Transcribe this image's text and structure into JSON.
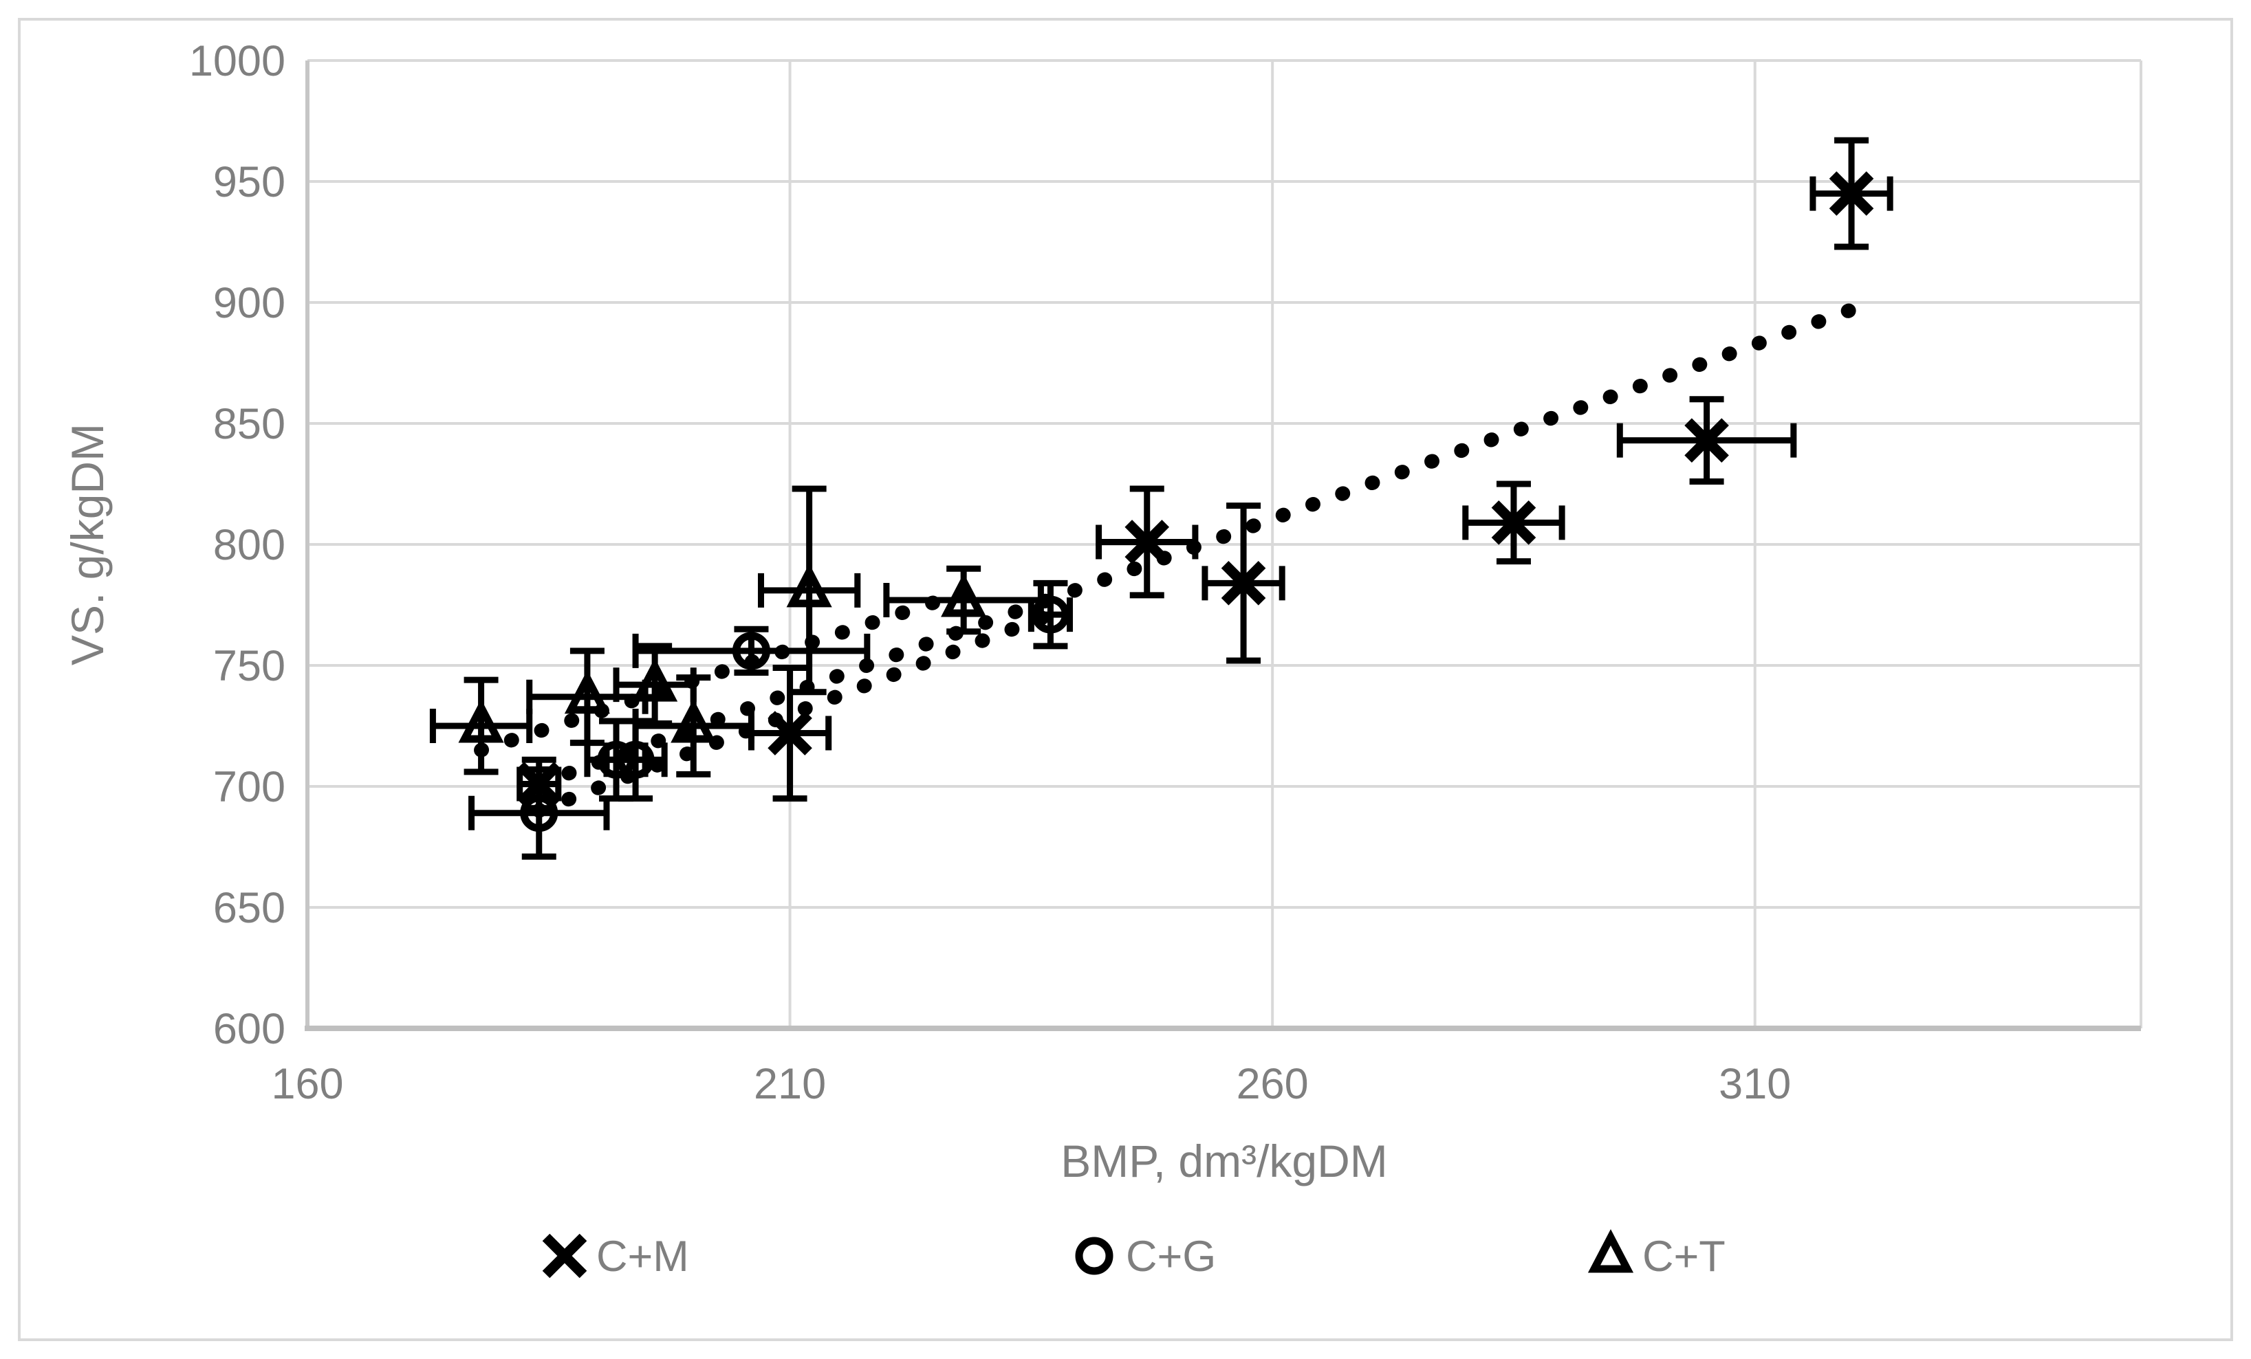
{
  "figure": {
    "background": "#ffffff",
    "border_color": "#d9d9d9",
    "text_color": "#7f7f7f",
    "gridline_color": "#d9d9d9",
    "axis_line_color": "#bfbfbf",
    "marker_color": "#000000"
  },
  "chart_data": {
    "type": "scatter",
    "title": "",
    "xlabel": "BMP, dm³/kgDM",
    "ylabel": "VS. g/kgDM",
    "xlim": [
      160,
      350
    ],
    "ylim": [
      600,
      1000
    ],
    "xticks": [
      160,
      210,
      260,
      310
    ],
    "yticks": [
      600,
      650,
      700,
      750,
      800,
      850,
      900,
      950,
      1000
    ],
    "grid": true,
    "legend_position": "bottom",
    "series": [
      {
        "name": "C+M",
        "marker": "x",
        "color": "#000000",
        "points": [
          {
            "x": 184,
            "y": 701,
            "xerr": 2,
            "yerr": 10
          },
          {
            "x": 210,
            "y": 722,
            "xerr": 4,
            "yerr": 27
          },
          {
            "x": 247,
            "y": 801,
            "xerr": 5,
            "yerr": 22
          },
          {
            "x": 257,
            "y": 784,
            "xerr": 4,
            "yerr": 32
          },
          {
            "x": 285,
            "y": 809,
            "xerr": 5,
            "yerr": 16
          },
          {
            "x": 305,
            "y": 843,
            "xerr": 9,
            "yerr": 17
          },
          {
            "x": 320,
            "y": 945,
            "xerr": 4,
            "yerr": 22
          }
        ],
        "trendline": {
          "style": "dotted",
          "from": [
            184,
            701
          ],
          "to": [
            320,
            897
          ]
        }
      },
      {
        "name": "C+G",
        "marker": "circle",
        "color": "#000000",
        "points": [
          {
            "x": 184,
            "y": 689,
            "xerr": 7,
            "yerr": 18
          },
          {
            "x": 192,
            "y": 711,
            "xerr": 3,
            "yerr": 16
          },
          {
            "x": 194,
            "y": 711,
            "xerr": 3,
            "yerr": 16
          },
          {
            "x": 206,
            "y": 756,
            "xerr": 12,
            "yerr": 9
          },
          {
            "x": 237,
            "y": 771,
            "xerr": 2,
            "yerr": 13
          }
        ],
        "trendline": {
          "style": "dotted",
          "from": [
            184,
            690
          ],
          "to": [
            237,
            771
          ]
        }
      },
      {
        "name": "C+T",
        "marker": "triangle",
        "color": "#000000",
        "points": [
          {
            "x": 178,
            "y": 725,
            "xerr": 5,
            "yerr": 19
          },
          {
            "x": 189,
            "y": 737,
            "xerr": 6,
            "yerr": 19
          },
          {
            "x": 196,
            "y": 742,
            "xerr": 4,
            "yerr": 16
          },
          {
            "x": 200,
            "y": 725,
            "xerr": 6,
            "yerr": 20
          },
          {
            "x": 212,
            "y": 781,
            "xerr": 5,
            "yerr": 42
          },
          {
            "x": 228,
            "y": 777,
            "xerr": 8,
            "yerr": 13
          }
        ],
        "trendline": {
          "style": "dotted",
          "from": [
            178,
            715
          ],
          "to": [
            228,
            780
          ]
        }
      }
    ]
  },
  "legend": {
    "items": [
      {
        "label": "C+M",
        "marker": "x"
      },
      {
        "label": "C+G",
        "marker": "circle"
      },
      {
        "label": "C+T",
        "marker": "triangle"
      }
    ]
  }
}
